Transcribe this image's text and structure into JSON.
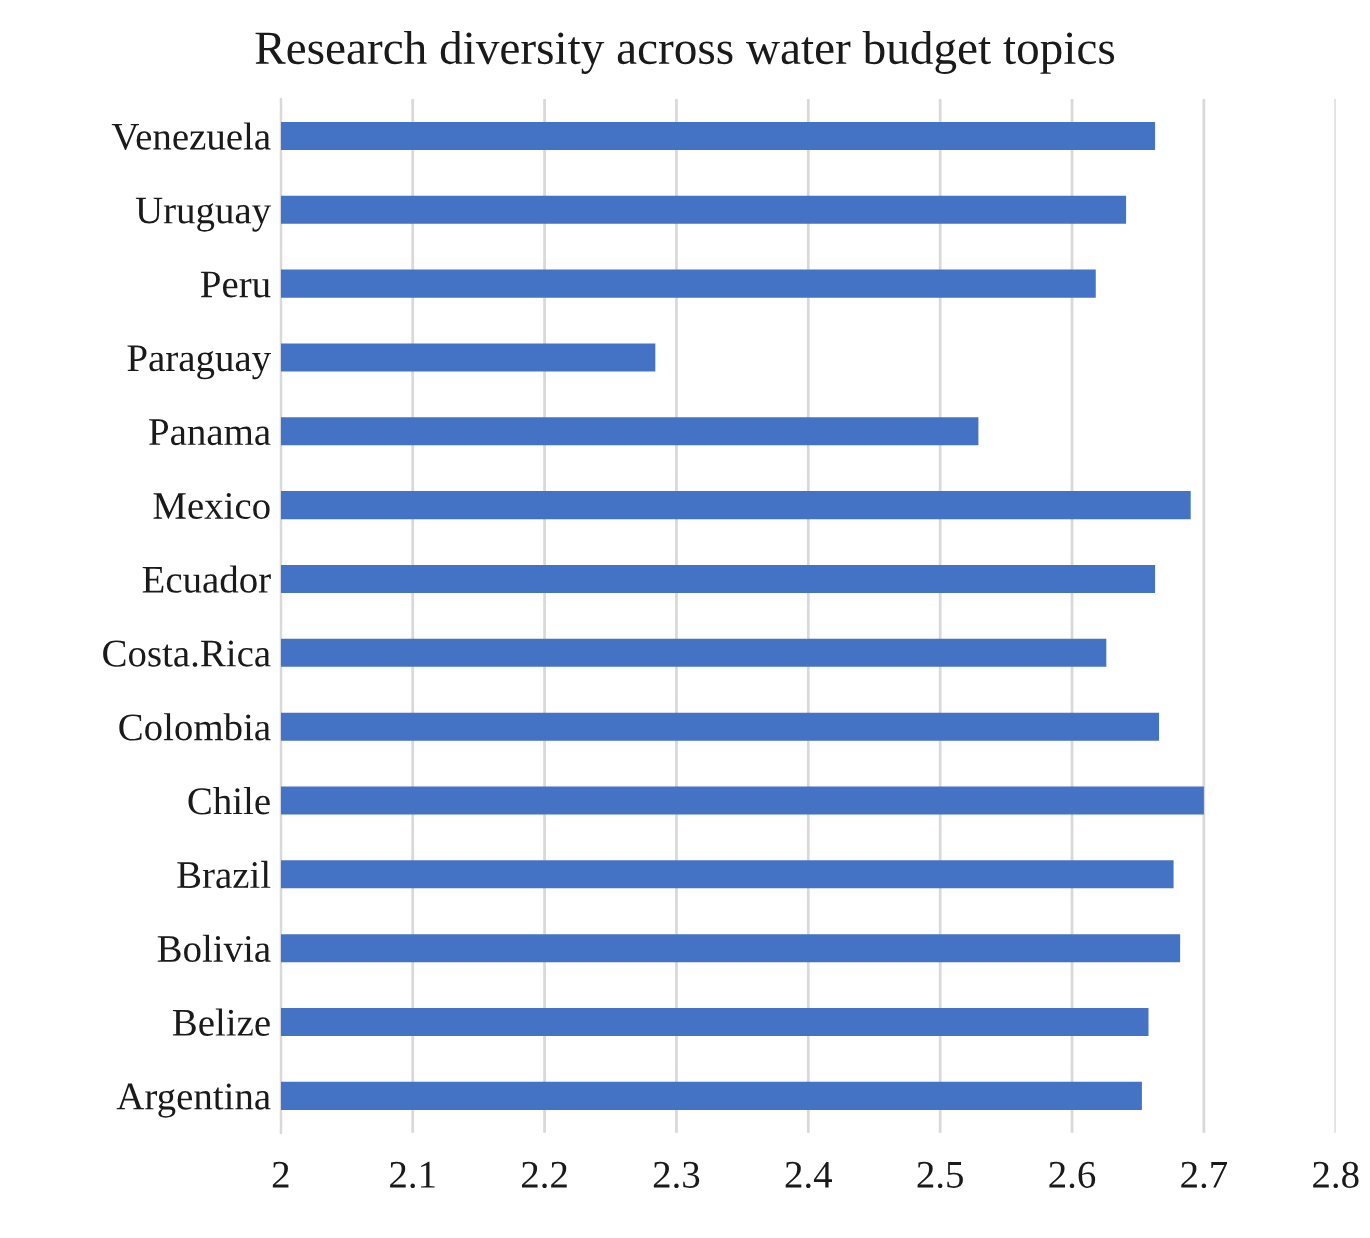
{
  "chart_data": {
    "type": "bar",
    "orientation": "horizontal",
    "title": "Research diversity across water budget topics",
    "categories": [
      "Venezuela",
      "Uruguay",
      "Peru",
      "Paraguay",
      "Panama",
      "Mexico",
      "Ecuador",
      "Costa.Rica",
      "Colombia",
      "Chile",
      "Brazil",
      "Bolivia",
      "Belize",
      "Argentina"
    ],
    "values": [
      2.663,
      2.641,
      2.618,
      2.284,
      2.529,
      2.69,
      2.663,
      2.626,
      2.666,
      2.7,
      2.677,
      2.682,
      2.658,
      2.653
    ],
    "color": "#4472c4",
    "xlim": [
      2,
      2.8
    ],
    "xticks": [
      2,
      2.1,
      2.2,
      2.3,
      2.4,
      2.5,
      2.6,
      2.7,
      2.8
    ],
    "grid": "x",
    "legend": false
  }
}
